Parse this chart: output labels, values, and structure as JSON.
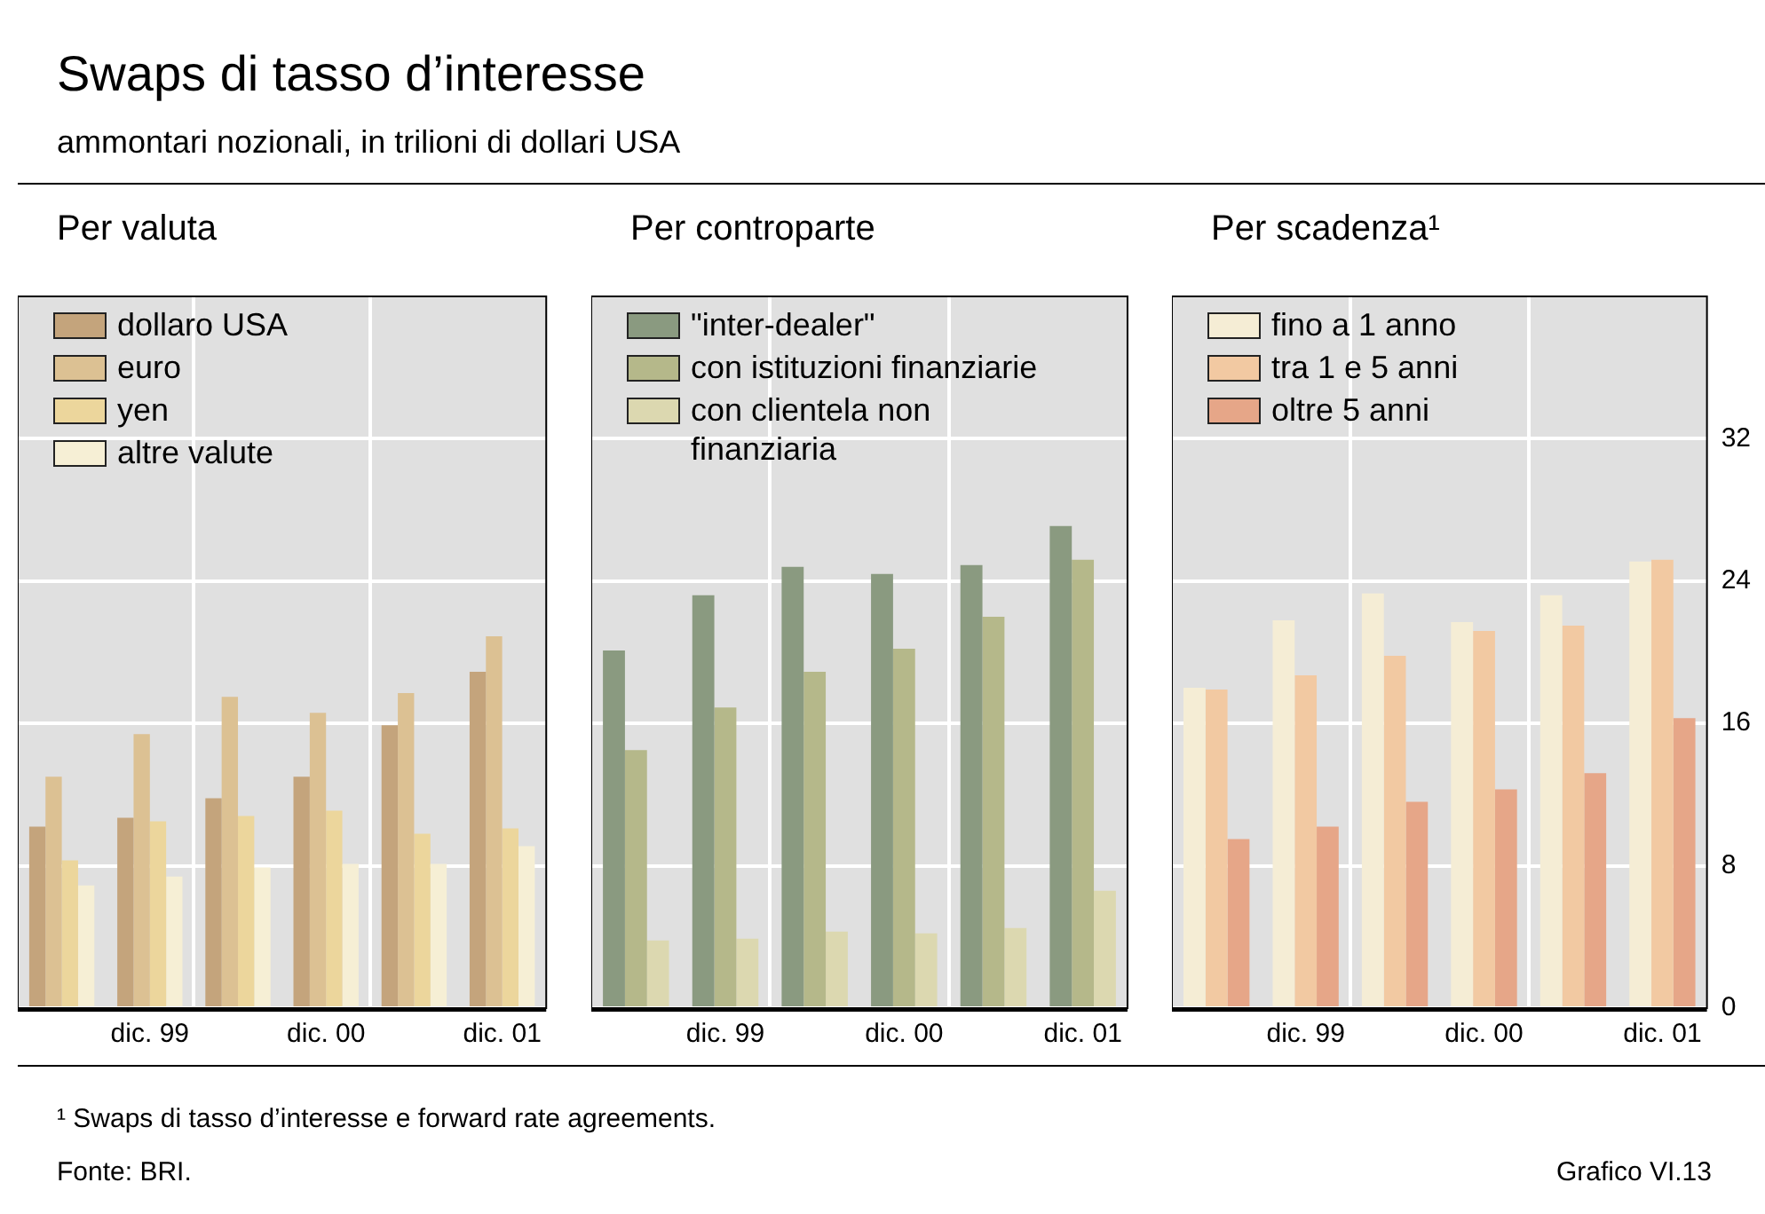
{
  "chart_data": [
    {
      "type": "bar",
      "title": "Per valuta",
      "annotations": [
        "Swaps di tasso d’interesse",
        "ammontari nozionali, in trilioni di dollari USA"
      ],
      "categories": [
        null,
        "dic. 99",
        null,
        "dic. 00",
        null,
        "dic. 01"
      ],
      "series": [
        {
          "name": "dollaro USA",
          "color": "#c4a47c",
          "values": [
            10.2,
            10.7,
            11.8,
            13.0,
            15.9,
            18.9
          ]
        },
        {
          "name": "euro",
          "color": "#dcc193",
          "values": [
            13.0,
            15.4,
            17.5,
            16.6,
            17.7,
            20.9
          ]
        },
        {
          "name": "yen",
          "color": "#ecd69c",
          "values": [
            8.3,
            10.5,
            10.8,
            11.1,
            9.8,
            10.1
          ]
        },
        {
          "name": "altre valute",
          "color": "#f6efd5",
          "values": [
            6.9,
            7.4,
            7.9,
            8.1,
            8.1,
            9.1
          ]
        }
      ],
      "ylim": [
        0,
        40
      ],
      "yticks": [
        0,
        8,
        16,
        24,
        32
      ],
      "grid": true,
      "legend": "top left",
      "tick_labels": "x"
    },
    {
      "type": "bar",
      "title": "Per controparte",
      "categories": [
        null,
        "dic. 99",
        null,
        "dic. 00",
        null,
        "dic. 01"
      ],
      "series": [
        {
          "name": "\"inter-dealer\"",
          "color": "#8a9a80",
          "values": [
            20.1,
            23.2,
            24.8,
            24.4,
            24.9,
            27.1
          ]
        },
        {
          "name": "con istituzioni finanziarie",
          "color": "#b5b88a",
          "values": [
            14.5,
            16.9,
            18.9,
            20.2,
            22.0,
            25.2
          ]
        },
        {
          "name": "con clientela non finanziaria",
          "color": "#dcd8b0",
          "values": [
            3.8,
            3.9,
            4.3,
            4.2,
            4.5,
            6.6
          ]
        }
      ],
      "ylim": [
        0,
        40
      ],
      "yticks": [
        0,
        8,
        16,
        24,
        32
      ],
      "grid": true,
      "legend": "top left",
      "tick_labels": "x"
    },
    {
      "type": "bar",
      "title": "Per scadenza¹",
      "annotations": [
        "¹ Swaps di tasso d’interesse e forward rate agreements.",
        "Fonte: BRI.",
        "Grafico VI.13"
      ],
      "categories": [
        null,
        "dic. 99",
        null,
        "dic. 00",
        null,
        "dic. 01"
      ],
      "series": [
        {
          "name": "fino a 1 anno",
          "color": "#f5edd5",
          "values": [
            18.0,
            21.8,
            23.3,
            21.7,
            23.2,
            25.1
          ]
        },
        {
          "name": "tra 1 e 5 anni",
          "color": "#f2c9a2",
          "values": [
            17.9,
            18.7,
            19.8,
            21.2,
            21.5,
            25.2
          ]
        },
        {
          "name": "oltre 5 anni",
          "color": "#e6a688",
          "values": [
            9.5,
            10.2,
            11.6,
            12.3,
            13.2,
            16.3
          ]
        }
      ],
      "ylim": [
        0,
        40
      ],
      "yticks": [
        0,
        8,
        16,
        24,
        32
      ],
      "grid": true,
      "legend": "top left"
    }
  ]
}
